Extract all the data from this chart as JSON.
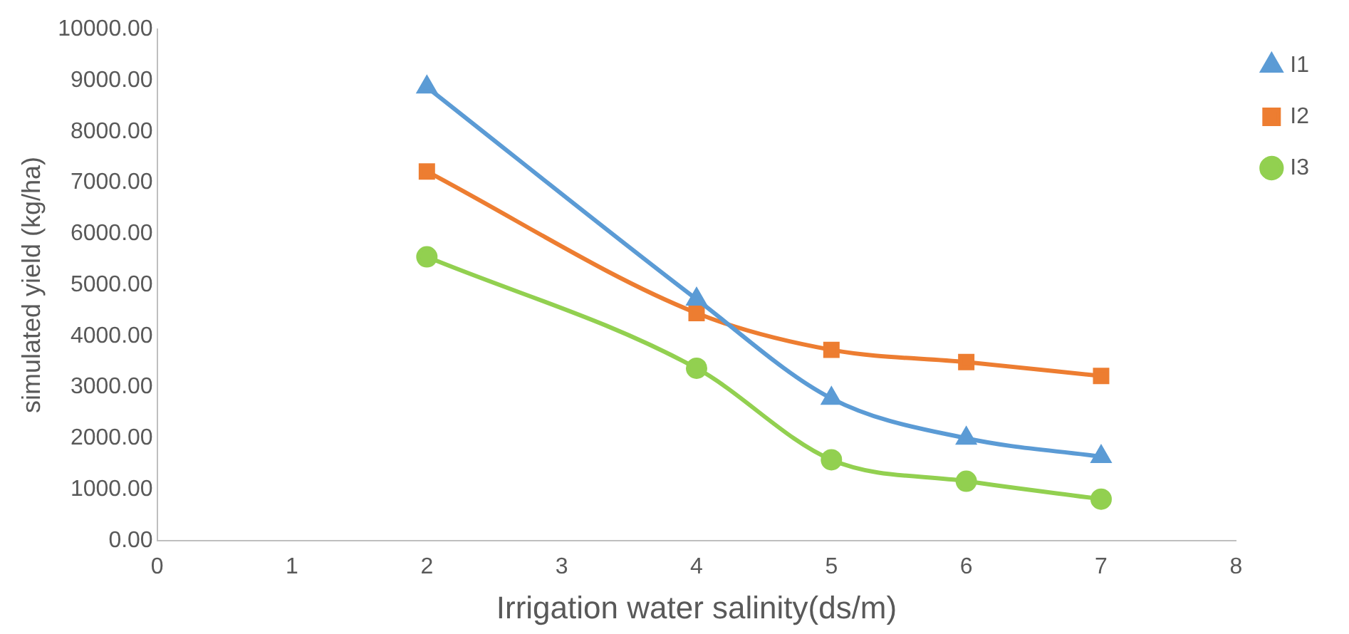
{
  "chart_data": {
    "type": "line",
    "xlabel": "Irrigation water salinity(ds/m)",
    "ylabel": "simulated yield (kg/ha)",
    "x": [
      2,
      4,
      5,
      6,
      7
    ],
    "series": [
      {
        "name": "I1",
        "color": "#5b9bd5",
        "marker": "triangle",
        "values": [
          8870,
          4720,
          2780,
          2000,
          1640
        ]
      },
      {
        "name": "I2",
        "color": "#ed7d31",
        "marker": "square",
        "values": [
          7220,
          4450,
          3730,
          3490,
          3220
        ]
      },
      {
        "name": "I3",
        "color": "#92d050",
        "marker": "circle",
        "values": [
          5550,
          3370,
          1580,
          1160,
          810
        ]
      }
    ],
    "xlim": [
      0,
      8
    ],
    "xticks": [
      0,
      1,
      2,
      3,
      4,
      5,
      6,
      7,
      8
    ],
    "ylim": [
      0,
      10000
    ],
    "yticks": [
      {
        "value": 0,
        "label": "0.00"
      },
      {
        "value": 1000,
        "label": "1000.00"
      },
      {
        "value": 2000,
        "label": "2000.00"
      },
      {
        "value": 3000,
        "label": "3000.00"
      },
      {
        "value": 4000,
        "label": "4000.00"
      },
      {
        "value": 5000,
        "label": "5000.00"
      },
      {
        "value": 6000,
        "label": "6000.00"
      },
      {
        "value": 7000,
        "label": "7000.00"
      },
      {
        "value": 8000,
        "label": "8000.00"
      },
      {
        "value": 9000,
        "label": "9000.00"
      },
      {
        "value": 10000,
        "label": "10000.00"
      }
    ],
    "grid": false,
    "legend": "top right"
  }
}
